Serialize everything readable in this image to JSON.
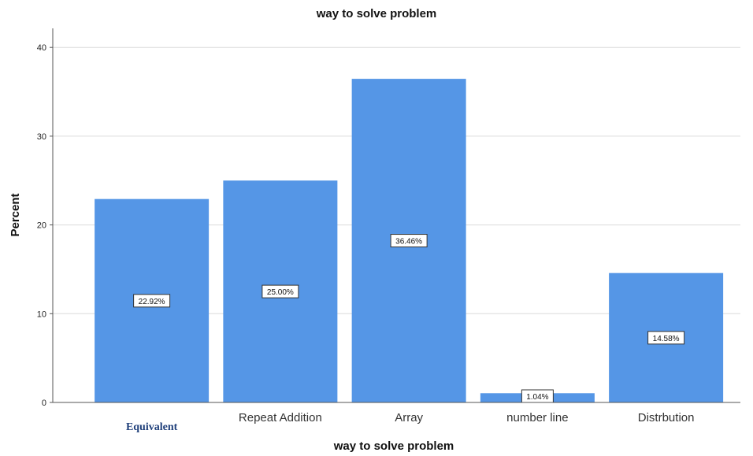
{
  "chart_data": {
    "type": "bar",
    "title": "way to solve problem",
    "xlabel": "way to solve problem",
    "ylabel": "Percent",
    "categories": [
      "Equivalent",
      "Repeat Addition",
      "Array",
      "number line",
      "Distrbution"
    ],
    "values": [
      22.92,
      25.0,
      36.46,
      1.04,
      14.58
    ],
    "data_labels": [
      "22.92%",
      "25.00%",
      "36.46%",
      "1.04%",
      "14.58%"
    ],
    "yticks": [
      "0",
      "10",
      "20",
      "30",
      "40"
    ],
    "ylim": [
      0,
      42
    ],
    "grid": true,
    "bar_color": "#5596e6",
    "grid_color": "#dcdcdc"
  }
}
